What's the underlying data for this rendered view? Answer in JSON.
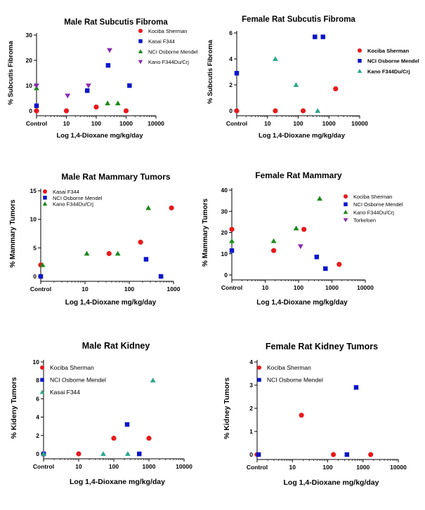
{
  "colors": {
    "red": "#e8191b",
    "blue": "#0a17c8",
    "green": "#1a8a1a",
    "teal": "#2aa88a",
    "purple": "#8a2ab0"
  },
  "chart_data": [
    {
      "id": "p1",
      "type": "scatter",
      "title": "Male Rat Subcutis Fibroma",
      "xlabel": "Log 1,4-Dioxane mg/kg/day",
      "ylabel": "% Subcutis Fibroma",
      "xscale": "log",
      "xlim": [
        1,
        10000
      ],
      "ylim": [
        0,
        30
      ],
      "yticks": [
        0,
        10,
        20,
        30
      ],
      "xticks": [
        {
          "v": 1,
          "label": "Control"
        },
        {
          "v": 10,
          "label": "10"
        },
        {
          "v": 100,
          "label": "100"
        },
        {
          "v": 1000,
          "label": "1000"
        },
        {
          "v": 10000,
          "label": "10000"
        }
      ],
      "legend_position": "top-right",
      "series": [
        {
          "name": "Kociba Sherman",
          "marker": "circle",
          "color": "#e8191b",
          "points": [
            [
              1,
              0
            ],
            [
              10,
              0
            ],
            [
              100,
              1.5
            ],
            [
              1000,
              0
            ]
          ]
        },
        {
          "name": "Kasai F344",
          "marker": "square",
          "color": "#0a17c8",
          "points": [
            [
              1,
              2
            ],
            [
              50,
              8
            ],
            [
              250,
              18
            ],
            [
              1300,
              10
            ]
          ]
        },
        {
          "name": "NCI Osborne Mendel",
          "marker": "triangle",
          "color": "#1a8a1a",
          "points": [
            [
              1,
              9
            ],
            [
              240,
              3
            ],
            [
              530,
              3
            ]
          ]
        },
        {
          "name": "Kano F344Du/Crj",
          "marker": "triangle-down",
          "color": "#8a2ab0",
          "points": [
            [
              1,
              10
            ],
            [
              11,
              6
            ],
            [
              55,
              10
            ],
            [
              280,
              24
            ]
          ]
        }
      ]
    },
    {
      "id": "p2",
      "type": "scatter",
      "title": "Female Rat Subcutis Fibroma",
      "xlabel": "Log 1,4-Dioxane mg/kg/day",
      "ylabel": "% Subcutis Fibroma",
      "xscale": "log",
      "xlim": [
        1,
        10000
      ],
      "ylim": [
        0,
        6
      ],
      "yticks": [
        0,
        2,
        4,
        6
      ],
      "xticks": [
        {
          "v": 1,
          "label": "Control"
        },
        {
          "v": 10,
          "label": "10"
        },
        {
          "v": 100,
          "label": "100"
        },
        {
          "v": 1000,
          "label": "1000"
        },
        {
          "v": 10000,
          "label": "10000"
        }
      ],
      "legend_position": "top-right",
      "series": [
        {
          "name": "Kociba Sherman",
          "marker": "circle",
          "color": "#e8191b",
          "points": [
            [
              1,
              0
            ],
            [
              18,
              0
            ],
            [
              145,
              0
            ],
            [
              1650,
              1.7
            ]
          ]
        },
        {
          "name": "NCI Osborne Mendel",
          "marker": "square",
          "color": "#0a17c8",
          "points": [
            [
              1,
              2.9
            ],
            [
              350,
              5.7
            ],
            [
              640,
              5.7
            ]
          ]
        },
        {
          "name": "Kano F344Du/Crj",
          "marker": "triangle",
          "color": "#2aa88a",
          "points": [
            [
              18,
              4
            ],
            [
              85,
              2
            ],
            [
              430,
              0
            ]
          ]
        }
      ]
    },
    {
      "id": "p3",
      "type": "scatter",
      "title": "Male Rat Mammary Tumors",
      "xlabel": "Log 1,4-Dioxane mg/kg/day",
      "ylabel": "% Mammary Tumors",
      "xscale": "log",
      "xlim": [
        1,
        1000
      ],
      "ylim": [
        0,
        15
      ],
      "yticks": [
        0,
        5,
        10,
        15
      ],
      "xticks": [
        {
          "v": 1,
          "label": "Control"
        },
        {
          "v": 10,
          "label": "10"
        },
        {
          "v": 100,
          "label": "100"
        },
        {
          "v": 1000,
          "label": "1000"
        }
      ],
      "legend_position": "top-left",
      "series": [
        {
          "name": "Kasai F344",
          "marker": "circle",
          "color": "#e8191b",
          "points": [
            [
              1,
              2
            ],
            [
              35,
              4
            ],
            [
              180,
              6
            ],
            [
              900,
              12
            ]
          ]
        },
        {
          "name": "NCI Osborne Mendel",
          "marker": "square",
          "color": "#0a17c8",
          "points": [
            [
              1,
              0
            ],
            [
              240,
              3
            ],
            [
              520,
              0
            ]
          ]
        },
        {
          "name": "Kano F344Du/Crj",
          "marker": "triangle",
          "color": "#1a8a1a",
          "points": [
            [
              1.1,
              2
            ],
            [
              11,
              4
            ],
            [
              55,
              4
            ],
            [
              270,
              12
            ]
          ]
        }
      ]
    },
    {
      "id": "p4",
      "type": "scatter",
      "title": "Female Rat Mammary",
      "xlabel": "Log 1,4-Dioxane mg/kg/day",
      "ylabel": "% Mammary Tumors",
      "xscale": "log",
      "xlim": [
        1,
        10000
      ],
      "ylim": [
        0,
        40
      ],
      "yticks": [
        0,
        10,
        20,
        30,
        40
      ],
      "xticks": [
        {
          "v": 1,
          "label": "Control"
        },
        {
          "v": 10,
          "label": "10"
        },
        {
          "v": 100,
          "label": "100"
        },
        {
          "v": 1000,
          "label": "1000"
        },
        {
          "v": 10000,
          "label": "10000"
        }
      ],
      "legend_position": "top-right",
      "series": [
        {
          "name": "Kociba Sherman",
          "marker": "circle",
          "color": "#e8191b",
          "points": [
            [
              1,
              21.5
            ],
            [
              18,
              11.5
            ],
            [
              145,
              21.5
            ],
            [
              1650,
              5
            ]
          ]
        },
        {
          "name": "NCI Osborne Mendel",
          "marker": "square",
          "color": "#0a17c8",
          "points": [
            [
              1,
              11.5
            ],
            [
              350,
              8.5
            ],
            [
              640,
              3
            ]
          ]
        },
        {
          "name": "Kano F344Du/Crj",
          "marker": "triangle",
          "color": "#1a8a1a",
          "points": [
            [
              1,
              16
            ],
            [
              18,
              16
            ],
            [
              85,
              22
            ],
            [
              430,
              36
            ]
          ]
        },
        {
          "name": "Torkelsen",
          "marker": "triangle-down",
          "color": "#8a2ab0",
          "points": [
            [
              115,
              13.5
            ]
          ]
        }
      ]
    },
    {
      "id": "p5",
      "type": "scatter",
      "title": "Male Rat Kidney",
      "xlabel": "Log 1,4-Dioxane mg/kg/day",
      "ylabel": "% Kideny Tumors",
      "xscale": "log",
      "xlim": [
        1,
        10000
      ],
      "ylim": [
        0,
        10
      ],
      "yticks": [
        0,
        2,
        4,
        6,
        8,
        10
      ],
      "xticks": [
        {
          "v": 1,
          "label": "Control"
        },
        {
          "v": 10,
          "label": "10"
        },
        {
          "v": 100,
          "label": "100"
        },
        {
          "v": 1000,
          "label": "1000"
        },
        {
          "v": 10000,
          "label": "10000"
        }
      ],
      "legend_position": "top-left",
      "series": [
        {
          "name": "Kociba Sherman",
          "marker": "circle",
          "color": "#e8191b",
          "points": [
            [
              1,
              0
            ],
            [
              10,
              0
            ],
            [
              100,
              1.7
            ],
            [
              1000,
              1.7
            ]
          ]
        },
        {
          "name": "NCI Osborne Mendel",
          "marker": "square",
          "color": "#0a17c8",
          "points": [
            [
              1,
              0
            ],
            [
              240,
              3.2
            ],
            [
              530,
              0
            ]
          ]
        },
        {
          "name": "Kasai F344",
          "marker": "triangle",
          "color": "#2aa88a",
          "points": [
            [
              1,
              0
            ],
            [
              50,
              0
            ],
            [
              250,
              0
            ],
            [
              1300,
              8
            ]
          ]
        }
      ]
    },
    {
      "id": "p6",
      "type": "scatter",
      "title": "Female Rat Kidney Tumors",
      "xlabel": "Log 1,4-Dioxane mg/kg/day",
      "ylabel": "% Kidney Tumors",
      "xscale": "log",
      "xlim": [
        1,
        10000
      ],
      "ylim": [
        0,
        4
      ],
      "yticks": [
        0,
        1,
        2,
        3,
        4
      ],
      "xticks": [
        {
          "v": 1,
          "label": "Control"
        },
        {
          "v": 10,
          "label": "10"
        },
        {
          "v": 100,
          "label": "100"
        },
        {
          "v": 1000,
          "label": "1000"
        },
        {
          "v": 10000,
          "label": "10000"
        }
      ],
      "legend_position": "top-left",
      "series": [
        {
          "name": "Kociba Sherman",
          "marker": "circle",
          "color": "#e8191b",
          "points": [
            [
              1,
              0
            ],
            [
              18,
              1.7
            ],
            [
              145,
              0
            ],
            [
              1650,
              0
            ]
          ]
        },
        {
          "name": "NCI Osborne Mendel",
          "marker": "square",
          "color": "#0a17c8",
          "points": [
            [
              1.1,
              0
            ],
            [
              350,
              0
            ],
            [
              640,
              2.9
            ]
          ]
        }
      ]
    }
  ]
}
